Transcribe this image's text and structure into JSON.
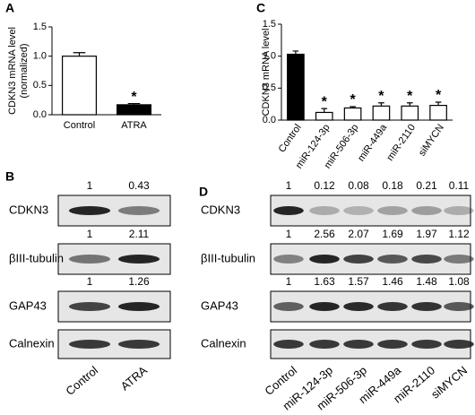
{
  "chart_data": [
    {
      "type": "bar",
      "panel": "A",
      "ylabel": [
        "CDKN3 mRNA level",
        "(normalized)"
      ],
      "categories": [
        "Control",
        "ATRA"
      ],
      "values": [
        1.0,
        0.17
      ],
      "errors": [
        0.06,
        0.02
      ],
      "colors": [
        "#ffffff",
        "#000000"
      ],
      "annotations": [
        null,
        "*"
      ],
      "ylim": [
        0,
        1.5
      ],
      "yticks": [
        {
          "value": 0,
          "label": "0.0"
        },
        {
          "value": 0.5,
          "label": "0.5"
        },
        {
          "value": 1,
          "label": "1.0"
        },
        {
          "value": 1.5,
          "label": "1.5"
        }
      ]
    },
    {
      "type": "bar",
      "panel": "C",
      "ylabel": [
        "CDKN3 mRNA level"
      ],
      "categories": [
        "Control",
        "miR-124-3p",
        "miR-506-3p",
        "miR-449a",
        "miR-2110",
        "siMYCN"
      ],
      "values": [
        1.03,
        0.12,
        0.19,
        0.22,
        0.22,
        0.23
      ],
      "errors": [
        0.05,
        0.06,
        0.02,
        0.05,
        0.05,
        0.05
      ],
      "colors": [
        "#000000",
        "#ffffff",
        "#ffffff",
        "#ffffff",
        "#ffffff",
        "#ffffff"
      ],
      "annotations": [
        null,
        "*",
        "*",
        "*",
        "*",
        "*"
      ],
      "ylim": [
        0,
        1.5
      ],
      "yticks": [
        {
          "value": 0,
          "label": "0.0"
        },
        {
          "value": 0.5,
          "label": "0.5"
        },
        {
          "value": 1,
          "label": "1.0"
        },
        {
          "value": 1.5,
          "label": "1.5"
        }
      ]
    }
  ],
  "blots": [
    {
      "panel": "B",
      "lanes": [
        "Control",
        "ATRA"
      ],
      "rows": [
        {
          "name": "CDKN3",
          "values": [
            1,
            0.43
          ]
        },
        {
          "name": "βIII-tubulin",
          "values": [
            1,
            2.11
          ]
        },
        {
          "name": "GAP43",
          "values": [
            1,
            1.26
          ]
        },
        {
          "name": "Calnexin"
        }
      ]
    },
    {
      "panel": "D",
      "lanes": [
        "Control",
        "miR-124-3p",
        "miR-506-3p",
        "miR-449a",
        "miR-2110",
        "siMYCN"
      ],
      "rows": [
        {
          "name": "CDKN3",
          "values": [
            1,
            0.12,
            0.08,
            0.18,
            0.21,
            0.11
          ]
        },
        {
          "name": "βIII-tubulin",
          "values": [
            1,
            2.56,
            2.07,
            1.69,
            1.97,
            1.12
          ]
        },
        {
          "name": "GAP43",
          "values": [
            1,
            1.63,
            1.57,
            1.46,
            1.48,
            1.08
          ]
        },
        {
          "name": "Calnexin"
        }
      ]
    }
  ]
}
